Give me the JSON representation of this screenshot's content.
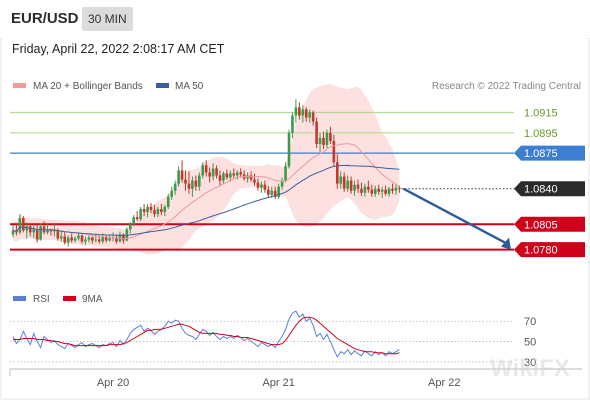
{
  "header": {
    "title": "EUR/USD",
    "timeframe": "30 MIN"
  },
  "datetime": "Friday, April 22, 2022 2:08:17 AM CET",
  "legend": {
    "ma20": "MA 20 + Bollinger Bands",
    "ma50": "MA 50",
    "rsi": "RSI",
    "rsi_ma": "9MA"
  },
  "credit": "Research © 2022 Trading Central",
  "watermark": "WikiFX",
  "colors": {
    "up": "#3a9b4a",
    "down": "#c0392b",
    "ma20": "#e89c9c",
    "ma50": "#3a5f9e",
    "bollinger": "#fde0e0",
    "resistance": "#b8d89c",
    "pivot": "#3c7ed0",
    "support": "#d0021b",
    "rsi": "#5b7fd6",
    "rsi_ma": "#d0021b"
  },
  "chart_data": [
    {
      "type": "candlestick",
      "title": "",
      "xlabel": "",
      "ylabel": "",
      "ylim": [
        1.076,
        1.0945
      ],
      "x_ticks": [
        {
          "label": "Apr 20",
          "index": 29
        },
        {
          "label": "Apr 21",
          "index": 77
        },
        {
          "label": "Apr 22",
          "index": 125
        }
      ],
      "last_price": 1.084,
      "levels": [
        {
          "value": 1.0915,
          "label": "1.0915",
          "kind": "resistance"
        },
        {
          "value": 1.0895,
          "label": "1.0895",
          "kind": "resistance"
        },
        {
          "value": 1.0875,
          "label": "1.0875",
          "kind": "pivot"
        },
        {
          "value": 1.0805,
          "label": "1.0805",
          "kind": "support"
        },
        {
          "value": 1.078,
          "label": "1.0780",
          "kind": "support"
        }
      ],
      "projection": {
        "from": 1.084,
        "to": 1.078
      },
      "candles": [
        [
          1.0795,
          1.0804,
          1.0792,
          1.0799
        ],
        [
          1.0799,
          1.0806,
          1.0794,
          1.0797
        ],
        [
          1.0797,
          1.0815,
          1.0795,
          1.0811
        ],
        [
          1.0811,
          1.0813,
          1.0797,
          1.0799
        ],
        [
          1.0799,
          1.0807,
          1.0791,
          1.0803
        ],
        [
          1.0803,
          1.0806,
          1.0793,
          1.0797
        ],
        [
          1.0797,
          1.0804,
          1.0791,
          1.08
        ],
        [
          1.08,
          1.0805,
          1.0787,
          1.079
        ],
        [
          1.079,
          1.0806,
          1.0789,
          1.0803
        ],
        [
          1.0803,
          1.0808,
          1.0795,
          1.0797
        ],
        [
          1.0797,
          1.0805,
          1.0795,
          1.0799
        ],
        [
          1.0799,
          1.0801,
          1.0794,
          1.0798
        ],
        [
          1.0798,
          1.0806,
          1.0793,
          1.0799
        ],
        [
          1.0799,
          1.0801,
          1.0789,
          1.0791
        ],
        [
          1.0791,
          1.0798,
          1.0788,
          1.0793
        ],
        [
          1.0793,
          1.0797,
          1.0785,
          1.0787
        ],
        [
          1.0787,
          1.0794,
          1.0783,
          1.0792
        ],
        [
          1.0792,
          1.0796,
          1.0787,
          1.0789
        ],
        [
          1.0789,
          1.0793,
          1.0787,
          1.0791
        ],
        [
          1.0791,
          1.0796,
          1.0789,
          1.0794
        ],
        [
          1.0794,
          1.0795,
          1.0786,
          1.0788
        ],
        [
          1.0788,
          1.0793,
          1.0785,
          1.079
        ],
        [
          1.079,
          1.0794,
          1.0787,
          1.0792
        ],
        [
          1.0792,
          1.0793,
          1.0786,
          1.0789
        ],
        [
          1.0789,
          1.0795,
          1.0787,
          1.079
        ],
        [
          1.079,
          1.0794,
          1.0786,
          1.0788
        ],
        [
          1.0788,
          1.0796,
          1.0786,
          1.0793
        ],
        [
          1.0793,
          1.0794,
          1.0787,
          1.0789
        ],
        [
          1.0789,
          1.0795,
          1.0788,
          1.0791
        ],
        [
          1.0791,
          1.0797,
          1.0788,
          1.0792
        ],
        [
          1.0792,
          1.0795,
          1.0786,
          1.0788
        ],
        [
          1.0788,
          1.0798,
          1.0787,
          1.0795
        ],
        [
          1.0795,
          1.0796,
          1.0786,
          1.0789
        ],
        [
          1.0789,
          1.0802,
          1.0788,
          1.08
        ],
        [
          1.08,
          1.0807,
          1.0796,
          1.0805
        ],
        [
          1.0805,
          1.0814,
          1.0803,
          1.0812
        ],
        [
          1.0812,
          1.0818,
          1.0808,
          1.081
        ],
        [
          1.081,
          1.0822,
          1.0808,
          1.082
        ],
        [
          1.082,
          1.0825,
          1.0813,
          1.0817
        ],
        [
          1.0817,
          1.0825,
          1.0812,
          1.0822
        ],
        [
          1.0822,
          1.0826,
          1.0816,
          1.0819
        ],
        [
          1.0819,
          1.0824,
          1.0812,
          1.0815
        ],
        [
          1.0815,
          1.0822,
          1.0812,
          1.082
        ],
        [
          1.082,
          1.0825,
          1.0814,
          1.0817
        ],
        [
          1.0817,
          1.0824,
          1.0813,
          1.0822
        ],
        [
          1.0822,
          1.0835,
          1.082,
          1.0832
        ],
        [
          1.0832,
          1.0842,
          1.0829,
          1.0838
        ],
        [
          1.0838,
          1.0848,
          1.0834,
          1.0845
        ],
        [
          1.0845,
          1.0862,
          1.0842,
          1.0858
        ],
        [
          1.0858,
          1.0868,
          1.0846,
          1.0849
        ],
        [
          1.0849,
          1.0858,
          1.0838,
          1.0845
        ],
        [
          1.0845,
          1.0857,
          1.0835,
          1.084
        ],
        [
          1.084,
          1.0852,
          1.0832,
          1.0848
        ],
        [
          1.0848,
          1.0853,
          1.0838,
          1.0842
        ],
        [
          1.0842,
          1.0856,
          1.0838,
          1.0853
        ],
        [
          1.0853,
          1.0866,
          1.085,
          1.0863
        ],
        [
          1.0863,
          1.0868,
          1.0852,
          1.0856
        ],
        [
          1.0856,
          1.0861,
          1.0846,
          1.0852
        ],
        [
          1.0852,
          1.0865,
          1.0848,
          1.086
        ],
        [
          1.086,
          1.0863,
          1.085,
          1.0853
        ],
        [
          1.0853,
          1.0858,
          1.0843,
          1.0848
        ],
        [
          1.0848,
          1.0857,
          1.0845,
          1.0855
        ],
        [
          1.0855,
          1.0859,
          1.0849,
          1.0851
        ],
        [
          1.0851,
          1.0858,
          1.0847,
          1.0855
        ],
        [
          1.0855,
          1.086,
          1.085,
          1.0853
        ],
        [
          1.0853,
          1.0858,
          1.0849,
          1.0856
        ],
        [
          1.0856,
          1.086,
          1.0851,
          1.0854
        ],
        [
          1.0854,
          1.0858,
          1.0848,
          1.085
        ],
        [
          1.085,
          1.0856,
          1.0846,
          1.0853
        ],
        [
          1.0853,
          1.0857,
          1.0847,
          1.0849
        ],
        [
          1.0849,
          1.0855,
          1.0843,
          1.0846
        ],
        [
          1.0846,
          1.085,
          1.0838,
          1.0841
        ],
        [
          1.0841,
          1.0847,
          1.0836,
          1.0844
        ],
        [
          1.0844,
          1.0848,
          1.0836,
          1.0839
        ],
        [
          1.0839,
          1.0843,
          1.0831,
          1.0834
        ],
        [
          1.0834,
          1.0842,
          1.0831,
          1.0838
        ],
        [
          1.0838,
          1.0842,
          1.083,
          1.0832
        ],
        [
          1.0832,
          1.0845,
          1.083,
          1.0842
        ],
        [
          1.0842,
          1.0851,
          1.0839,
          1.0848
        ],
        [
          1.0848,
          1.0866,
          1.0846,
          1.0862
        ],
        [
          1.0862,
          1.0898,
          1.086,
          1.0895
        ],
        [
          1.0895,
          1.0915,
          1.089,
          1.0912
        ],
        [
          1.0912,
          1.0928,
          1.0905,
          1.092
        ],
        [
          1.092,
          1.0925,
          1.0908,
          1.0912
        ],
        [
          1.0912,
          1.0922,
          1.0905,
          1.0918
        ],
        [
          1.0918,
          1.092,
          1.0906,
          1.091
        ],
        [
          1.091,
          1.0918,
          1.0905,
          1.0915
        ],
        [
          1.0915,
          1.0917,
          1.0902,
          1.0906
        ],
        [
          1.0906,
          1.091,
          1.088,
          1.0884
        ],
        [
          1.0884,
          1.0895,
          1.0876,
          1.089
        ],
        [
          1.089,
          1.0896,
          1.0879,
          1.0883
        ],
        [
          1.0883,
          1.0898,
          1.088,
          1.0895
        ],
        [
          1.0895,
          1.0901,
          1.0884,
          1.0887
        ],
        [
          1.0887,
          1.0893,
          1.0862,
          1.0866
        ],
        [
          1.0866,
          1.0874,
          1.084,
          1.0845
        ],
        [
          1.0845,
          1.0857,
          1.084,
          1.0852
        ],
        [
          1.0852,
          1.0856,
          1.0837,
          1.084
        ],
        [
          1.084,
          1.0853,
          1.0837,
          1.0848
        ],
        [
          1.0848,
          1.0852,
          1.0835,
          1.0838
        ],
        [
          1.0838,
          1.0848,
          1.0833,
          1.0844
        ],
        [
          1.0844,
          1.0849,
          1.0836,
          1.084
        ],
        [
          1.084,
          1.0846,
          1.0833,
          1.0836
        ],
        [
          1.0836,
          1.0845,
          1.0832,
          1.0842
        ],
        [
          1.0842,
          1.0848,
          1.0836,
          1.0839
        ],
        [
          1.0839,
          1.0844,
          1.0832,
          1.0835
        ],
        [
          1.0835,
          1.0843,
          1.0832,
          1.084
        ],
        [
          1.084,
          1.0844,
          1.0834,
          1.0837
        ],
        [
          1.0837,
          1.0842,
          1.0831,
          1.0839
        ],
        [
          1.0839,
          1.0843,
          1.0833,
          1.0835
        ],
        [
          1.0835,
          1.0842,
          1.0832,
          1.084
        ],
        [
          1.084,
          1.0845,
          1.0835,
          1.0838
        ],
        [
          1.0838,
          1.0844,
          1.0834,
          1.0841
        ],
        [
          1.0841,
          1.0843,
          1.0836,
          1.084
        ]
      ]
    },
    {
      "type": "line",
      "title": "",
      "ylim": [
        20,
        85
      ],
      "y_ticks": [
        70,
        50,
        30
      ],
      "guide_lines": [
        70,
        50,
        30
      ],
      "series": [
        {
          "name": "RSI",
          "values": [
            55,
            48,
            52,
            60,
            53,
            47,
            58,
            50,
            44,
            55,
            52,
            49,
            51,
            47,
            45,
            43,
            48,
            46,
            44,
            47,
            49,
            45,
            47,
            48,
            46,
            44,
            47,
            46,
            48,
            49,
            45,
            51,
            47,
            52,
            58,
            62,
            64,
            66,
            60,
            63,
            61,
            57,
            60,
            62,
            65,
            70,
            68,
            71,
            70,
            63,
            58,
            56,
            55,
            52,
            57,
            62,
            60,
            56,
            59,
            55,
            52,
            55,
            53,
            55,
            53,
            56,
            54,
            51,
            53,
            50,
            48,
            45,
            49,
            47,
            45,
            47,
            44,
            50,
            55,
            62,
            72,
            78,
            80,
            74,
            77,
            70,
            73,
            66,
            55,
            58,
            52,
            57,
            50,
            42,
            35,
            40,
            38,
            42,
            37,
            41,
            38,
            36,
            41,
            38,
            36,
            40,
            37,
            39,
            36,
            40,
            38,
            40,
            42
          ]
        },
        {
          "name": "9MA",
          "values": [
            52,
            52,
            52,
            53,
            53,
            53,
            53,
            52,
            52,
            52,
            51,
            51,
            50,
            50,
            49,
            48,
            48,
            47,
            46,
            46,
            46,
            46,
            46,
            46,
            46,
            46,
            46,
            46,
            47,
            47,
            47,
            47,
            48,
            49,
            51,
            53,
            55,
            57,
            59,
            61,
            61,
            62,
            62,
            62,
            63,
            64,
            65,
            66,
            67,
            67,
            66,
            65,
            63,
            61,
            59,
            58,
            58,
            58,
            58,
            58,
            57,
            57,
            56,
            56,
            55,
            55,
            54,
            54,
            54,
            53,
            52,
            51,
            50,
            49,
            48,
            47,
            47,
            47,
            48,
            51,
            56,
            61,
            66,
            70,
            73,
            74,
            74,
            73,
            71,
            68,
            65,
            62,
            59,
            56,
            53,
            51,
            49,
            47,
            45,
            43,
            42,
            41,
            40,
            40,
            40,
            39,
            39,
            39,
            38,
            38,
            38,
            38,
            39
          ]
        }
      ]
    }
  ]
}
